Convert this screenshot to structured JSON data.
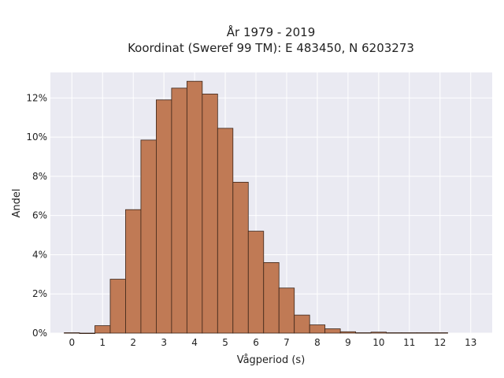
{
  "chart_data": {
    "type": "bar",
    "title": "År 1979 - 2019",
    "subtitle": "Koordinat (Sweref 99 TM): E 483450, N 6203273",
    "xlabel": "Vågperiod (s)",
    "ylabel": "Andel",
    "x_ticks": [
      "0",
      "1",
      "2",
      "3",
      "4",
      "5",
      "6",
      "7",
      "8",
      "9",
      "10",
      "11",
      "12",
      "13"
    ],
    "y_ticks": [
      "0%",
      "2%",
      "4%",
      "6%",
      "8%",
      "10%",
      "12%"
    ],
    "xlim": [
      -0.7,
      13.7
    ],
    "ylim": [
      0,
      13.3
    ],
    "bin_width": 0.5,
    "bins": [
      {
        "x": 0.0,
        "value": 0.02
      },
      {
        "x": 0.5,
        "value": 0.0
      },
      {
        "x": 1.0,
        "value": 0.38
      },
      {
        "x": 1.5,
        "value": 2.75
      },
      {
        "x": 2.0,
        "value": 6.3
      },
      {
        "x": 2.5,
        "value": 9.85
      },
      {
        "x": 3.0,
        "value": 11.9
      },
      {
        "x": 3.5,
        "value": 12.5
      },
      {
        "x": 4.0,
        "value": 12.85
      },
      {
        "x": 4.5,
        "value": 12.2
      },
      {
        "x": 5.0,
        "value": 10.45
      },
      {
        "x": 5.5,
        "value": 7.7
      },
      {
        "x": 6.0,
        "value": 5.2
      },
      {
        "x": 6.5,
        "value": 3.6
      },
      {
        "x": 7.0,
        "value": 2.3
      },
      {
        "x": 7.5,
        "value": 0.92
      },
      {
        "x": 8.0,
        "value": 0.42
      },
      {
        "x": 8.5,
        "value": 0.22
      },
      {
        "x": 9.0,
        "value": 0.07
      },
      {
        "x": 9.5,
        "value": 0.02
      },
      {
        "x": 10.0,
        "value": 0.05
      },
      {
        "x": 10.5,
        "value": 0.02
      },
      {
        "x": 11.0,
        "value": 0.02
      },
      {
        "x": 11.5,
        "value": 0.02
      },
      {
        "x": 12.0,
        "value": 0.02
      }
    ],
    "grid": true,
    "bar_color": "#c07a55",
    "bar_edge_color": "#3a2418",
    "plot_background": "#eaeaf2",
    "grid_color": "#ffffff"
  }
}
